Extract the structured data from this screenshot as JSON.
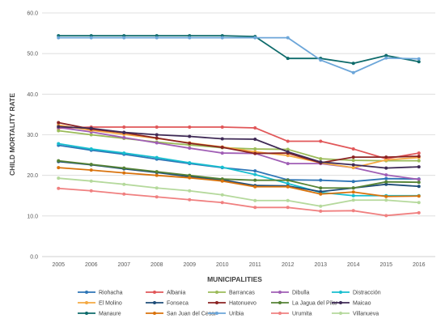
{
  "chart_data": {
    "type": "line",
    "title": "",
    "xlabel": "MUNICIPALITIES",
    "ylabel": "CHILD MORTALITY RATE",
    "ylim": [
      0,
      60
    ],
    "yticks": [
      "0.0",
      "10.0",
      "20.0",
      "30.0",
      "40.0",
      "50.0",
      "60.0"
    ],
    "grid": "horizontal",
    "legend_position": "bottom",
    "categories": [
      "2005",
      "2006",
      "2007",
      "2008",
      "2009",
      "2010",
      "2011",
      "2012",
      "2013",
      "2014",
      "2015",
      "2016"
    ],
    "series": [
      {
        "name": "Riohacha",
        "color": "#2E75B6",
        "values": [
          27.4,
          26.2,
          25.2,
          24.0,
          22.9,
          21.9,
          21.1,
          18.9,
          18.8,
          18.5,
          19.2,
          19.1
        ]
      },
      {
        "name": "Albania",
        "color": "#E15759",
        "values": [
          31.6,
          31.9,
          31.9,
          31.9,
          31.9,
          31.9,
          31.7,
          28.4,
          28.4,
          26.5,
          24.1,
          25.5
        ]
      },
      {
        "name": "Barrancas",
        "color": "#9BBB59",
        "values": [
          31.0,
          30.0,
          29.1,
          28.2,
          27.5,
          26.8,
          26.5,
          26.4,
          24.1,
          23.7,
          23.6,
          23.6
        ]
      },
      {
        "name": "Dibulla",
        "color": "#A05EB5",
        "values": [
          31.8,
          30.7,
          29.3,
          28.0,
          26.7,
          25.5,
          25.4,
          22.9,
          22.9,
          21.9,
          20.1,
          19.0
        ]
      },
      {
        "name": "Distracción",
        "color": "#17BECF",
        "values": [
          27.8,
          26.5,
          25.5,
          24.4,
          23.1,
          22.0,
          20.2,
          18.0,
          15.8,
          15.0,
          15.0,
          15.0
        ]
      },
      {
        "name": "El Molino",
        "color": "#F4A942",
        "values": [
          32.4,
          31.1,
          30.1,
          29.1,
          28.0,
          27.0,
          25.8,
          24.9,
          23.1,
          21.9,
          23.8,
          24.4
        ]
      },
      {
        "name": "Fonseca",
        "color": "#1F4E79",
        "values": [
          23.4,
          22.6,
          21.6,
          20.7,
          19.7,
          18.9,
          17.5,
          17.4,
          16.0,
          16.9,
          17.8,
          17.3
        ]
      },
      {
        "name": "Hatonuevo",
        "color": "#8B2323",
        "values": [
          33.0,
          31.4,
          30.5,
          29.2,
          27.9,
          26.9,
          25.4,
          25.5,
          23.1,
          24.5,
          24.5,
          24.7
        ]
      },
      {
        "name": "La Jagua del Pilar",
        "color": "#548235",
        "values": [
          23.6,
          22.7,
          21.8,
          20.9,
          20.0,
          19.1,
          18.8,
          18.8,
          16.9,
          16.9,
          18.4,
          18.3
        ]
      },
      {
        "name": "Maicao",
        "color": "#3F2A56",
        "values": [
          32.0,
          31.6,
          30.6,
          30.0,
          29.6,
          29.0,
          28.9,
          25.8,
          23.3,
          22.6,
          21.8,
          22.1
        ]
      },
      {
        "name": "Manaure",
        "color": "#0E6B6B",
        "values": [
          54.4,
          54.4,
          54.4,
          54.4,
          54.4,
          54.4,
          54.2,
          48.8,
          48.8,
          47.6,
          49.5,
          48.0
        ]
      },
      {
        "name": "San Juan del Cesar",
        "color": "#D9730D",
        "values": [
          21.9,
          21.3,
          20.6,
          20.0,
          19.4,
          18.6,
          17.2,
          17.2,
          15.4,
          15.9,
          14.8,
          14.9
        ]
      },
      {
        "name": "Uribia",
        "color": "#6CA6D9",
        "values": [
          53.9,
          53.9,
          53.9,
          53.9,
          53.9,
          53.9,
          53.9,
          53.9,
          48.4,
          45.3,
          48.9,
          48.7
        ]
      },
      {
        "name": "Urumita",
        "color": "#F08080",
        "values": [
          16.8,
          16.2,
          15.4,
          14.7,
          14.0,
          13.3,
          12.1,
          12.1,
          11.2,
          11.3,
          10.1,
          10.8
        ]
      },
      {
        "name": "Villanueva",
        "color": "#B5D99C",
        "values": [
          19.3,
          18.6,
          17.8,
          16.9,
          16.2,
          15.2,
          13.8,
          13.8,
          12.4,
          13.9,
          13.9,
          13.3
        ]
      }
    ]
  }
}
